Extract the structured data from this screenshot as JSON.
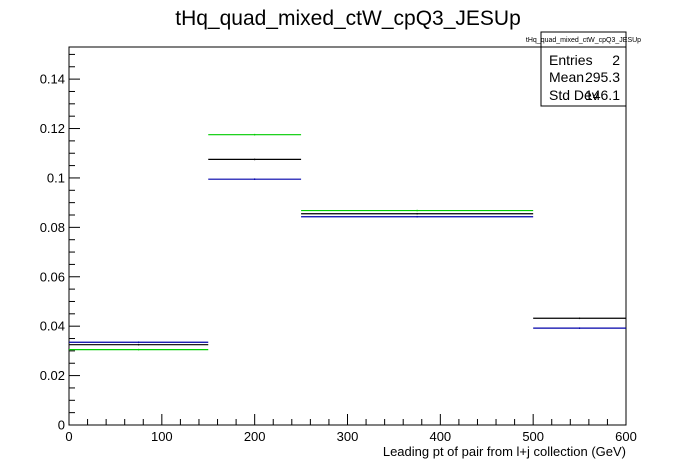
{
  "chart_data": {
    "type": "step-histogram",
    "title": "tHq_quad_mixed_ctW_cpQ3_JESUp",
    "xlabel": "Leading pt of pair from l+j collection (GeV)",
    "ylabel": "",
    "xlim": [
      0,
      600
    ],
    "ylim": [
      0,
      0.153
    ],
    "x_ticks": [
      "0",
      "100",
      "200",
      "300",
      "400",
      "500",
      "600"
    ],
    "y_ticks": [
      "0",
      "0.02",
      "0.04",
      "0.06",
      "0.08",
      "0.1",
      "0.12",
      "0.14"
    ],
    "bin_edges": [
      0,
      150,
      250,
      500,
      600
    ],
    "series": [
      {
        "color": "#000000",
        "values": [
          0.0325,
          0.1075,
          0.0855,
          0.0432
        ]
      },
      {
        "color": "#00cc00",
        "values": [
          0.0305,
          0.1175,
          0.0868,
          null
        ]
      },
      {
        "color": "#0000aa",
        "values": [
          0.0335,
          0.0995,
          0.0843,
          0.0392
        ]
      }
    ],
    "stats_box": {
      "title": "tHq_quad_mixed_ctW_cpQ3_JESUp",
      "rows": [
        {
          "label": "Entries",
          "value": "2"
        },
        {
          "label": "Mean",
          "value": "295.3"
        },
        {
          "label": "Std Dev",
          "value": "146.1"
        }
      ]
    }
  }
}
